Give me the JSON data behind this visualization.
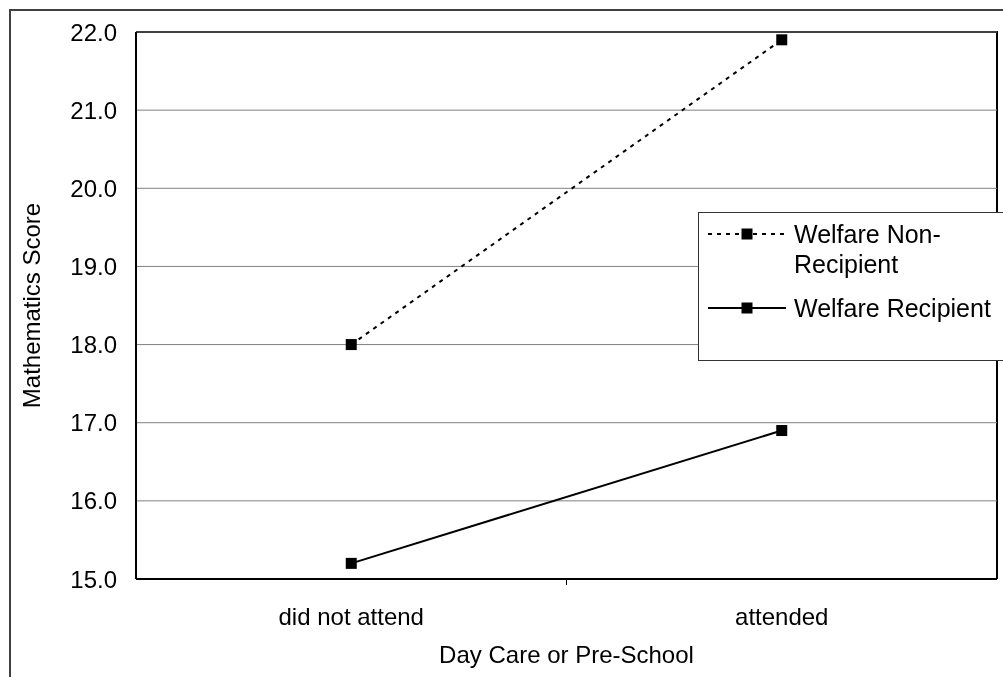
{
  "chart_data": {
    "type": "line",
    "xlabel": "Day Care or Pre-School",
    "ylabel": "Mathematics Score",
    "categories": [
      "did not attend",
      "attended"
    ],
    "series": [
      {
        "name": "Welfare Non-Recipient",
        "color": "#000000",
        "values": [
          18.0,
          21.9
        ],
        "line_style": "dotted"
      },
      {
        "name": "Welfare Recipient",
        "color": "#000000",
        "values": [
          15.2,
          16.9
        ],
        "line_style": "solid"
      }
    ],
    "ylim": [
      15,
      22
    ],
    "yticks": [
      {
        "value": 15,
        "label": "15.0"
      },
      {
        "value": 16,
        "label": "16.0"
      },
      {
        "value": 17,
        "label": "17.0"
      },
      {
        "value": 18,
        "label": "18.0"
      },
      {
        "value": 19,
        "label": "19.0"
      },
      {
        "value": 20,
        "label": "20.0"
      },
      {
        "value": 21,
        "label": "21.0"
      },
      {
        "value": 22,
        "label": "22.0"
      }
    ],
    "grid": "y",
    "legend": "right",
    "marker": "square"
  }
}
